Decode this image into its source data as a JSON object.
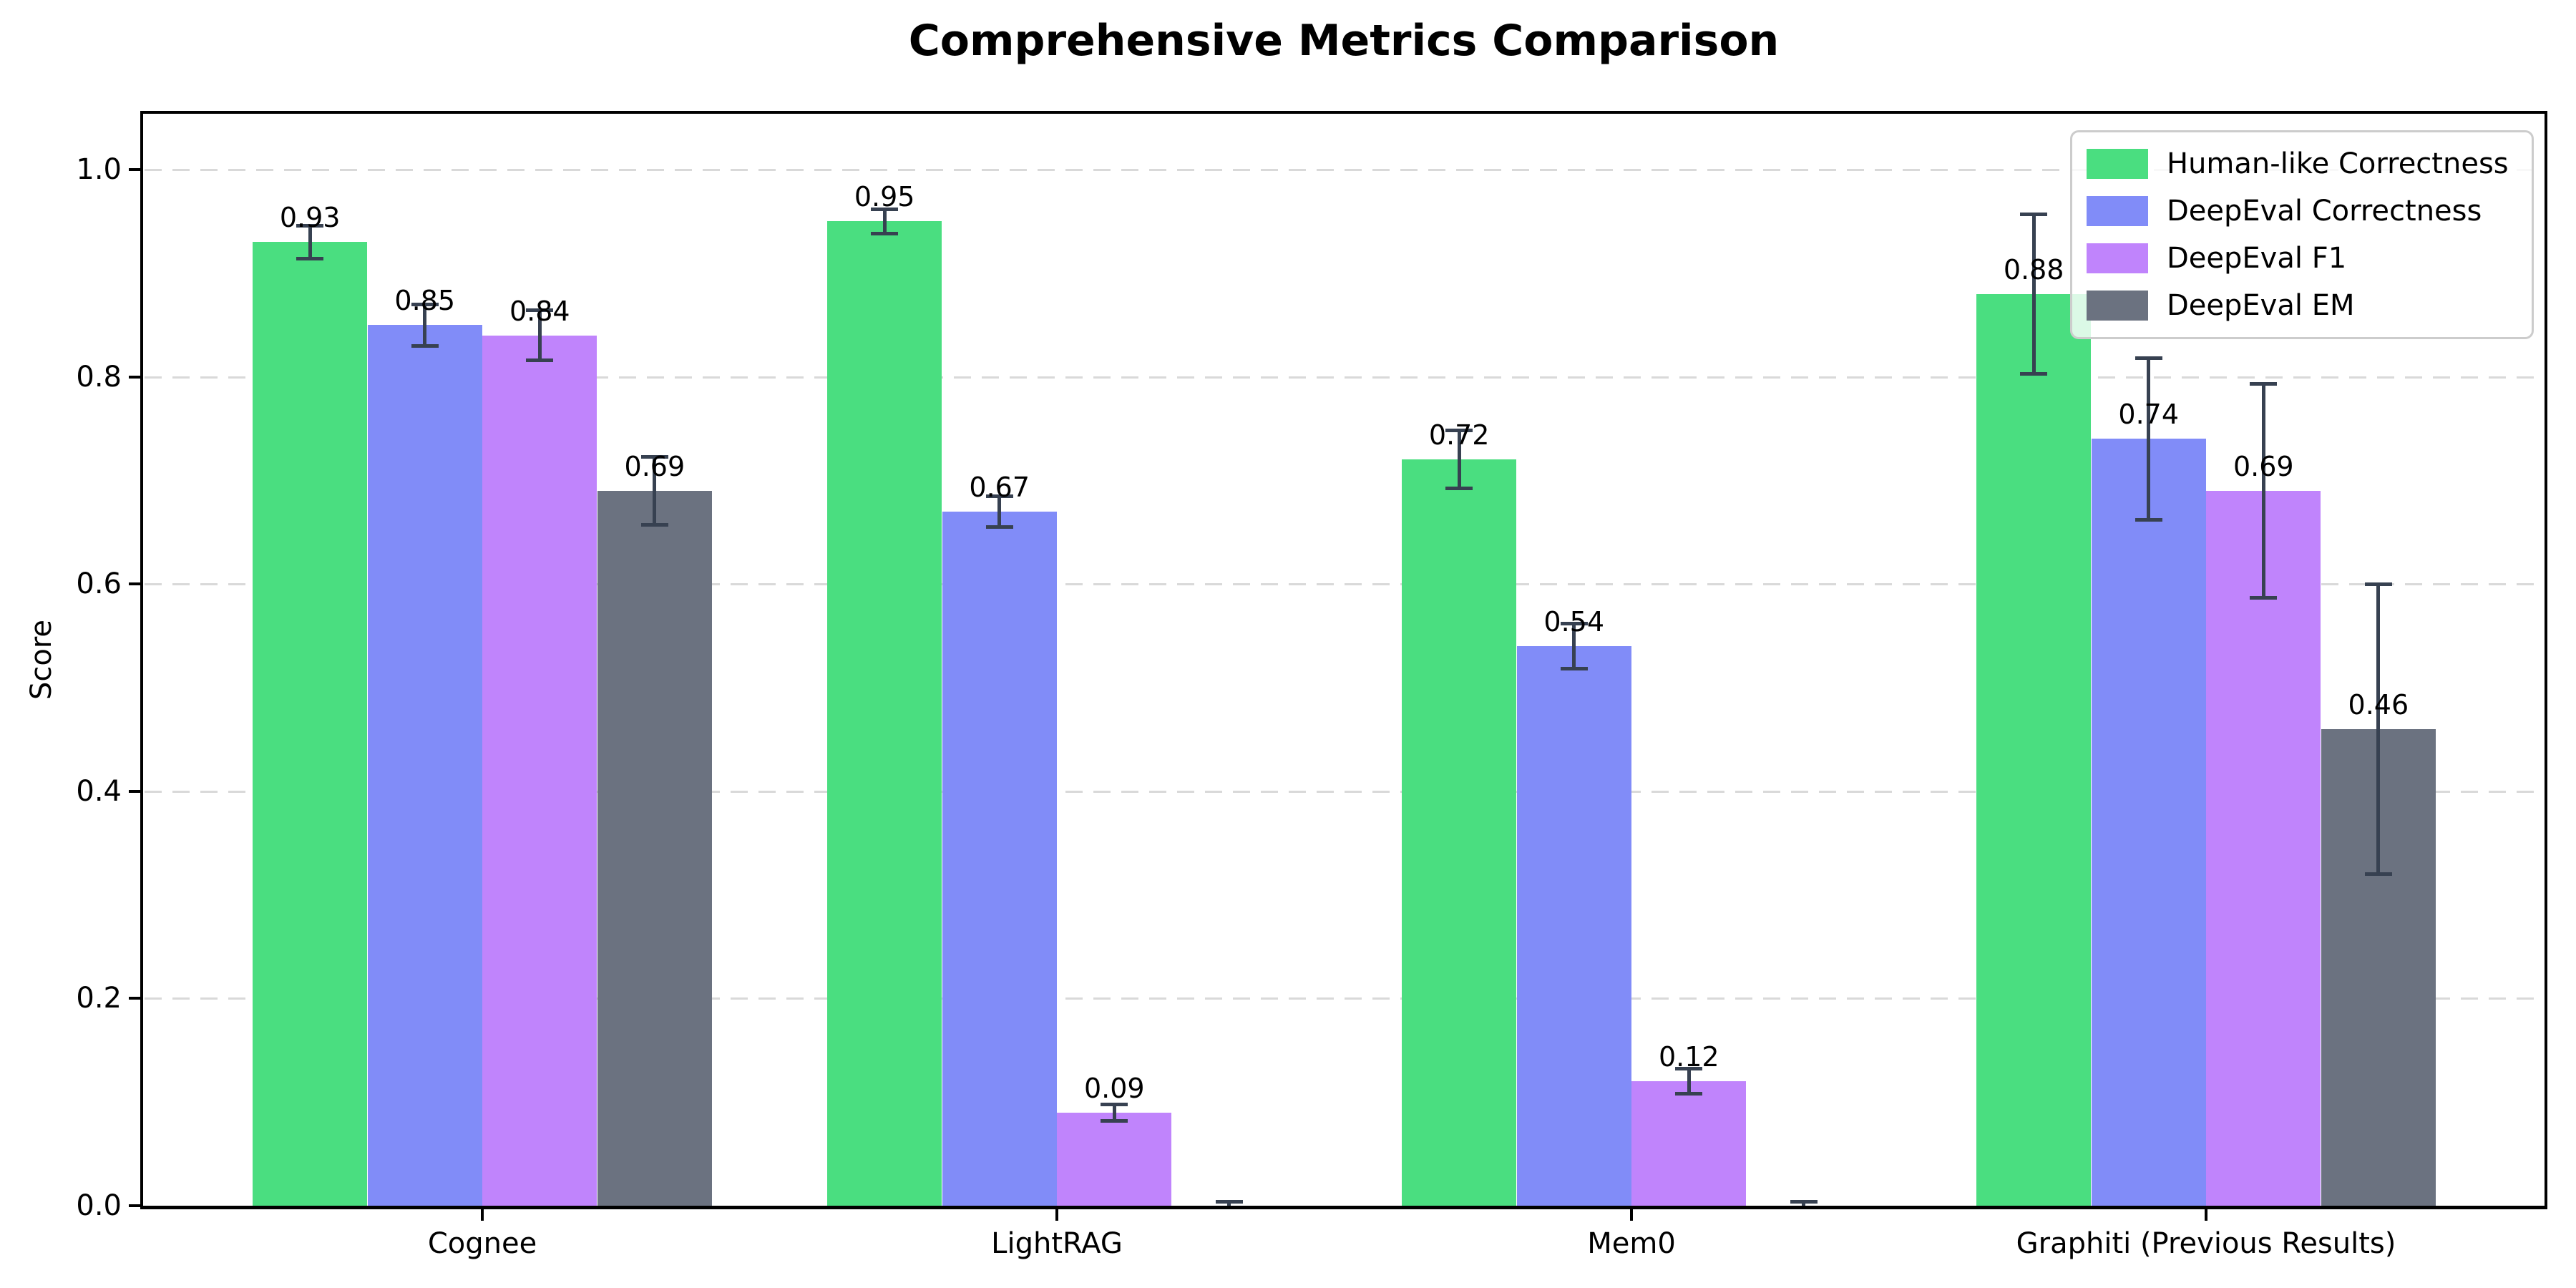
{
  "figure": {
    "title": "Comprehensive Metrics Comparison"
  },
  "chart_data": {
    "type": "bar",
    "title": "Comprehensive Metrics Comparison",
    "xlabel": "",
    "ylabel": "Score",
    "categories": [
      "Cognee",
      "LightRAG",
      "Mem0",
      "Graphiti (Previous Results)"
    ],
    "ytick_labels": [
      "0.0",
      "0.2",
      "0.4",
      "0.6",
      "0.8",
      "1.0"
    ],
    "yticks": [
      0.0,
      0.2,
      0.4,
      0.6,
      0.8,
      1.0
    ],
    "ylim": [
      0,
      1.054
    ],
    "grid": "horizontal-dashed",
    "legend_position": "upper-right",
    "series": [
      {
        "name": "Human-like Correctness",
        "color": "#4ade80",
        "values": [
          0.93,
          0.95,
          0.72,
          0.88
        ],
        "errors": [
          0.016,
          0.012,
          0.028,
          0.077
        ],
        "labels": [
          "0.93",
          "0.95",
          "0.72",
          "0.88"
        ]
      },
      {
        "name": "DeepEval Correctness",
        "color": "#818cf8",
        "values": [
          0.85,
          0.67,
          0.54,
          0.74
        ],
        "errors": [
          0.02,
          0.015,
          0.022,
          0.078
        ],
        "labels": [
          "0.85",
          "0.67",
          "0.54",
          "0.74"
        ]
      },
      {
        "name": "DeepEval F1",
        "color": "#c084fc",
        "values": [
          0.84,
          0.09,
          0.12,
          0.69
        ],
        "errors": [
          0.024,
          0.008,
          0.012,
          0.103
        ],
        "labels": [
          "0.84",
          "0.09",
          "0.12",
          "0.69"
        ]
      },
      {
        "name": "DeepEval EM",
        "color": "#6b7280",
        "values": [
          0.69,
          0.0,
          0.0,
          0.46
        ],
        "errors": [
          0.033,
          0.004,
          0.004,
          0.14
        ],
        "labels": [
          "0.69",
          "",
          "",
          "0.46"
        ]
      }
    ],
    "style": {
      "error_bar_color": "#374151",
      "grid_color": "#d9d9d9",
      "spine_color": "#000000",
      "background": "#ffffff"
    }
  }
}
